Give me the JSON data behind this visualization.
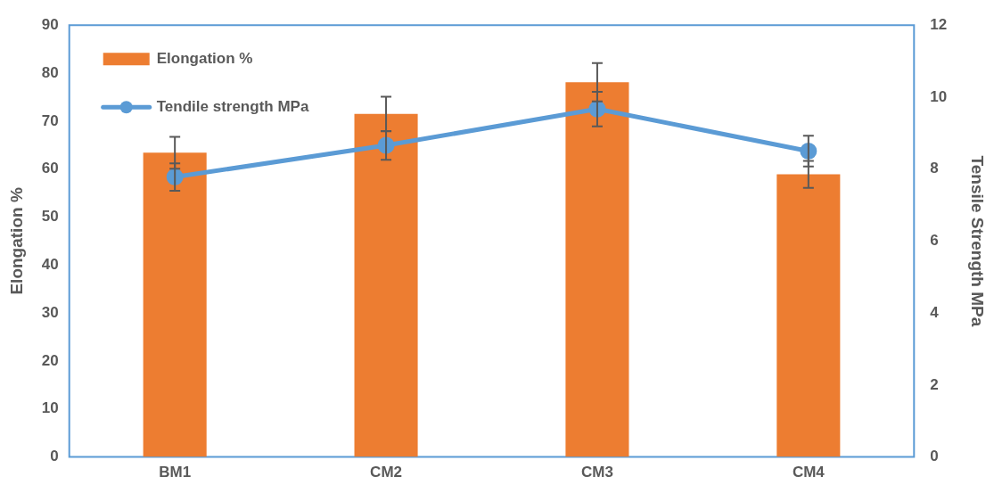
{
  "chart_data": {
    "type": "bar",
    "categories": [
      "BM1",
      "CM2",
      "CM3",
      "CM4"
    ],
    "ylabel": "Elongation %",
    "y2label": "Tensile Strength MPa",
    "ylim": [
      0,
      90
    ],
    "yticks": [
      0,
      10,
      20,
      30,
      40,
      50,
      60,
      70,
      80,
      90
    ],
    "y2lim": [
      0,
      12
    ],
    "y2ticks": [
      0,
      2,
      4,
      6,
      8,
      10,
      12
    ],
    "grid": false,
    "legend": "top left",
    "series": [
      {
        "name": "Elongation %",
        "type": "bar",
        "color": "#ed7d31",
        "values": [
          63.4,
          71.5,
          78.1,
          58.9
        ],
        "errors": [
          3.3,
          3.6,
          4.0,
          2.8
        ]
      },
      {
        "name": "Tendile strength MPa",
        "type": "line",
        "axis": "y2",
        "color": "#5b9bd5",
        "marker": "circle",
        "values": [
          7.78,
          8.66,
          9.67,
          8.5
        ],
        "errors": [
          0.38,
          0.4,
          0.48,
          0.43
        ]
      }
    ]
  }
}
